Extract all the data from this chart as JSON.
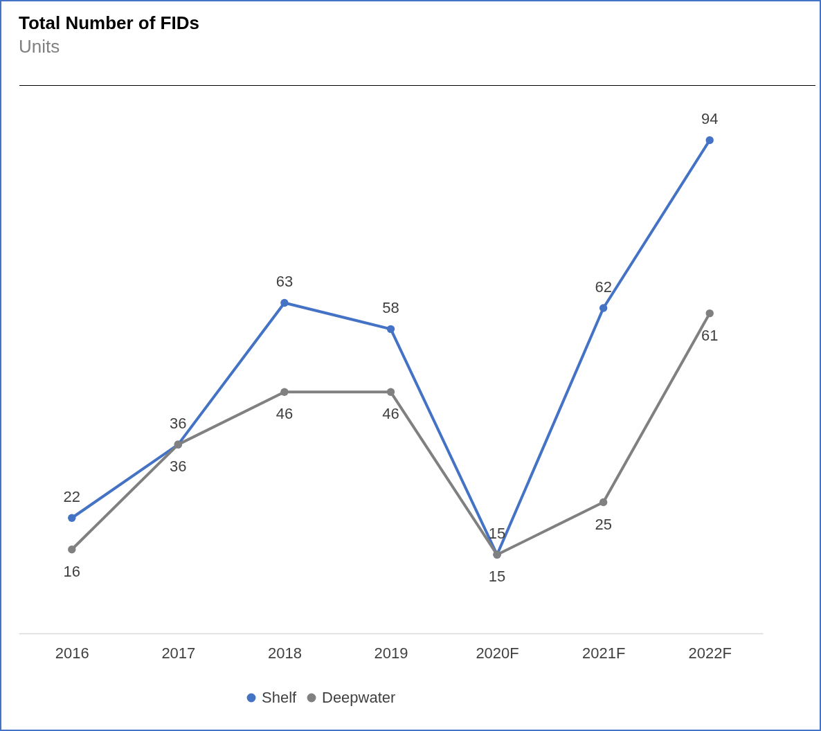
{
  "chart_data": {
    "type": "line",
    "title": "Total Number of FIDs",
    "subtitle": "Units",
    "categories": [
      "2016",
      "2017",
      "2018",
      "2019",
      "2020F",
      "2021F",
      "2022F"
    ],
    "series": [
      {
        "name": "Shelf",
        "color": "#4472c4",
        "values": [
          22,
          36,
          63,
          58,
          15,
          62,
          94
        ]
      },
      {
        "name": "Deepwater",
        "color": "#808080",
        "values": [
          16,
          36,
          46,
          46,
          15,
          25,
          61
        ]
      }
    ],
    "data_labels": true,
    "legend": "bottom",
    "marker": "circle",
    "line_style": "solid",
    "tick_labels": "x"
  }
}
